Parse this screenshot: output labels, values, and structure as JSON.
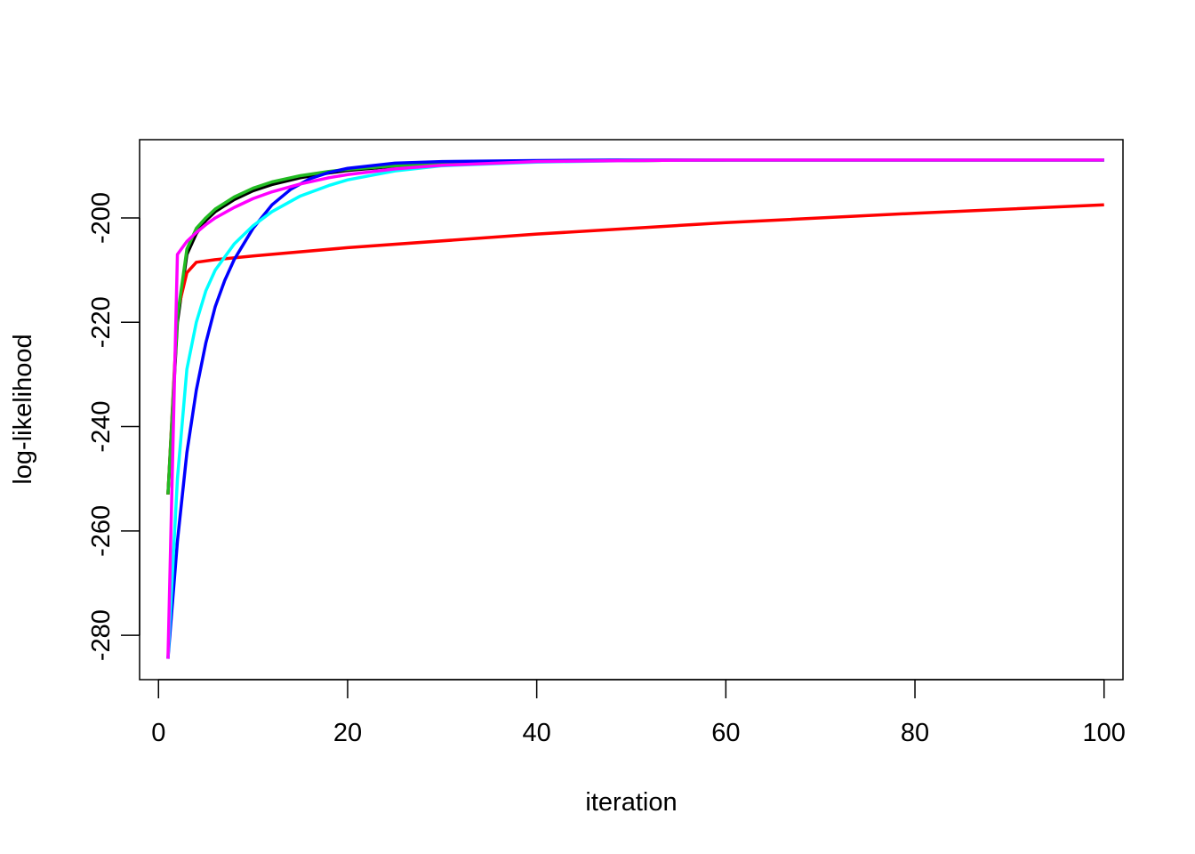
{
  "chart_data": {
    "type": "line",
    "title": "",
    "xlabel": "iteration",
    "ylabel": "log-likelihood",
    "xlim": [
      -2,
      102
    ],
    "ylim": [
      -288.5,
      -185
    ],
    "xticks": [
      0,
      20,
      40,
      60,
      80,
      100
    ],
    "yticks": [
      -200,
      -220,
      -240,
      -260,
      -280
    ],
    "grid": false,
    "legend": "none",
    "series": [
      {
        "color": "#000000",
        "x": [
          1,
          2,
          3,
          4,
          5,
          6,
          8,
          10,
          12,
          15,
          18,
          20,
          25,
          30,
          40,
          50,
          60,
          80,
          100
        ],
        "y": [
          -253,
          -220,
          -207,
          -203,
          -200.5,
          -198.8,
          -196.5,
          -194.8,
          -193.6,
          -192.3,
          -191.4,
          -190.9,
          -190.1,
          -189.6,
          -189.1,
          -189.0,
          -188.9,
          -188.9,
          -188.9
        ]
      },
      {
        "color": "#ff0000",
        "x": [
          1,
          2,
          3,
          4,
          6,
          10,
          20,
          40,
          60,
          80,
          100
        ],
        "y": [
          -253,
          -218,
          -210.5,
          -208.5,
          -208,
          -207.3,
          -205.7,
          -203.1,
          -200.9,
          -199.1,
          -197.5
        ]
      },
      {
        "color": "#22bb22",
        "x": [
          1,
          2,
          3,
          4,
          5,
          6,
          8,
          10,
          12,
          15,
          18,
          20,
          25,
          30,
          40,
          50,
          60,
          80,
          100
        ],
        "y": [
          -253,
          -219,
          -206,
          -202,
          -200,
          -198.3,
          -196,
          -194.3,
          -193.1,
          -191.9,
          -191.1,
          -190.7,
          -190.0,
          -189.5,
          -189.1,
          -189.0,
          -188.9,
          -188.9,
          -188.9
        ]
      },
      {
        "color": "#0000ff",
        "x": [
          1,
          2,
          3,
          4,
          5,
          6,
          7,
          8,
          10,
          12,
          14,
          16,
          18,
          20,
          25,
          30,
          40,
          50,
          60,
          80,
          100
        ],
        "y": [
          -284.5,
          -262,
          -245,
          -233,
          -224,
          -217,
          -212,
          -208,
          -202,
          -197.5,
          -194.5,
          -192.5,
          -191.3,
          -190.5,
          -189.5,
          -189.2,
          -189.0,
          -188.9,
          -188.9,
          -188.9,
          -188.9
        ]
      },
      {
        "color": "#00ffff",
        "x": [
          1,
          2,
          3,
          4,
          5,
          6,
          8,
          10,
          12,
          15,
          18,
          20,
          25,
          30,
          40,
          50,
          60,
          80,
          100
        ],
        "y": [
          -284.5,
          -250,
          -229,
          -220,
          -214,
          -210,
          -205,
          -201.5,
          -198.8,
          -195.8,
          -193.8,
          -192.7,
          -191.0,
          -190.0,
          -189.3,
          -189.0,
          -188.9,
          -188.9,
          -188.9
        ]
      },
      {
        "color": "#ff00ff",
        "x": [
          1,
          2,
          3,
          4,
          5,
          6,
          8,
          10,
          12,
          15,
          18,
          20,
          25,
          30,
          40,
          50,
          60,
          80,
          100
        ],
        "y": [
          -284.5,
          -207,
          -204.5,
          -202.8,
          -201.3,
          -200,
          -198,
          -196.3,
          -195,
          -193.5,
          -192.3,
          -191.7,
          -190.6,
          -189.9,
          -189.2,
          -189.0,
          -188.9,
          -188.9,
          -188.9
        ]
      }
    ]
  }
}
